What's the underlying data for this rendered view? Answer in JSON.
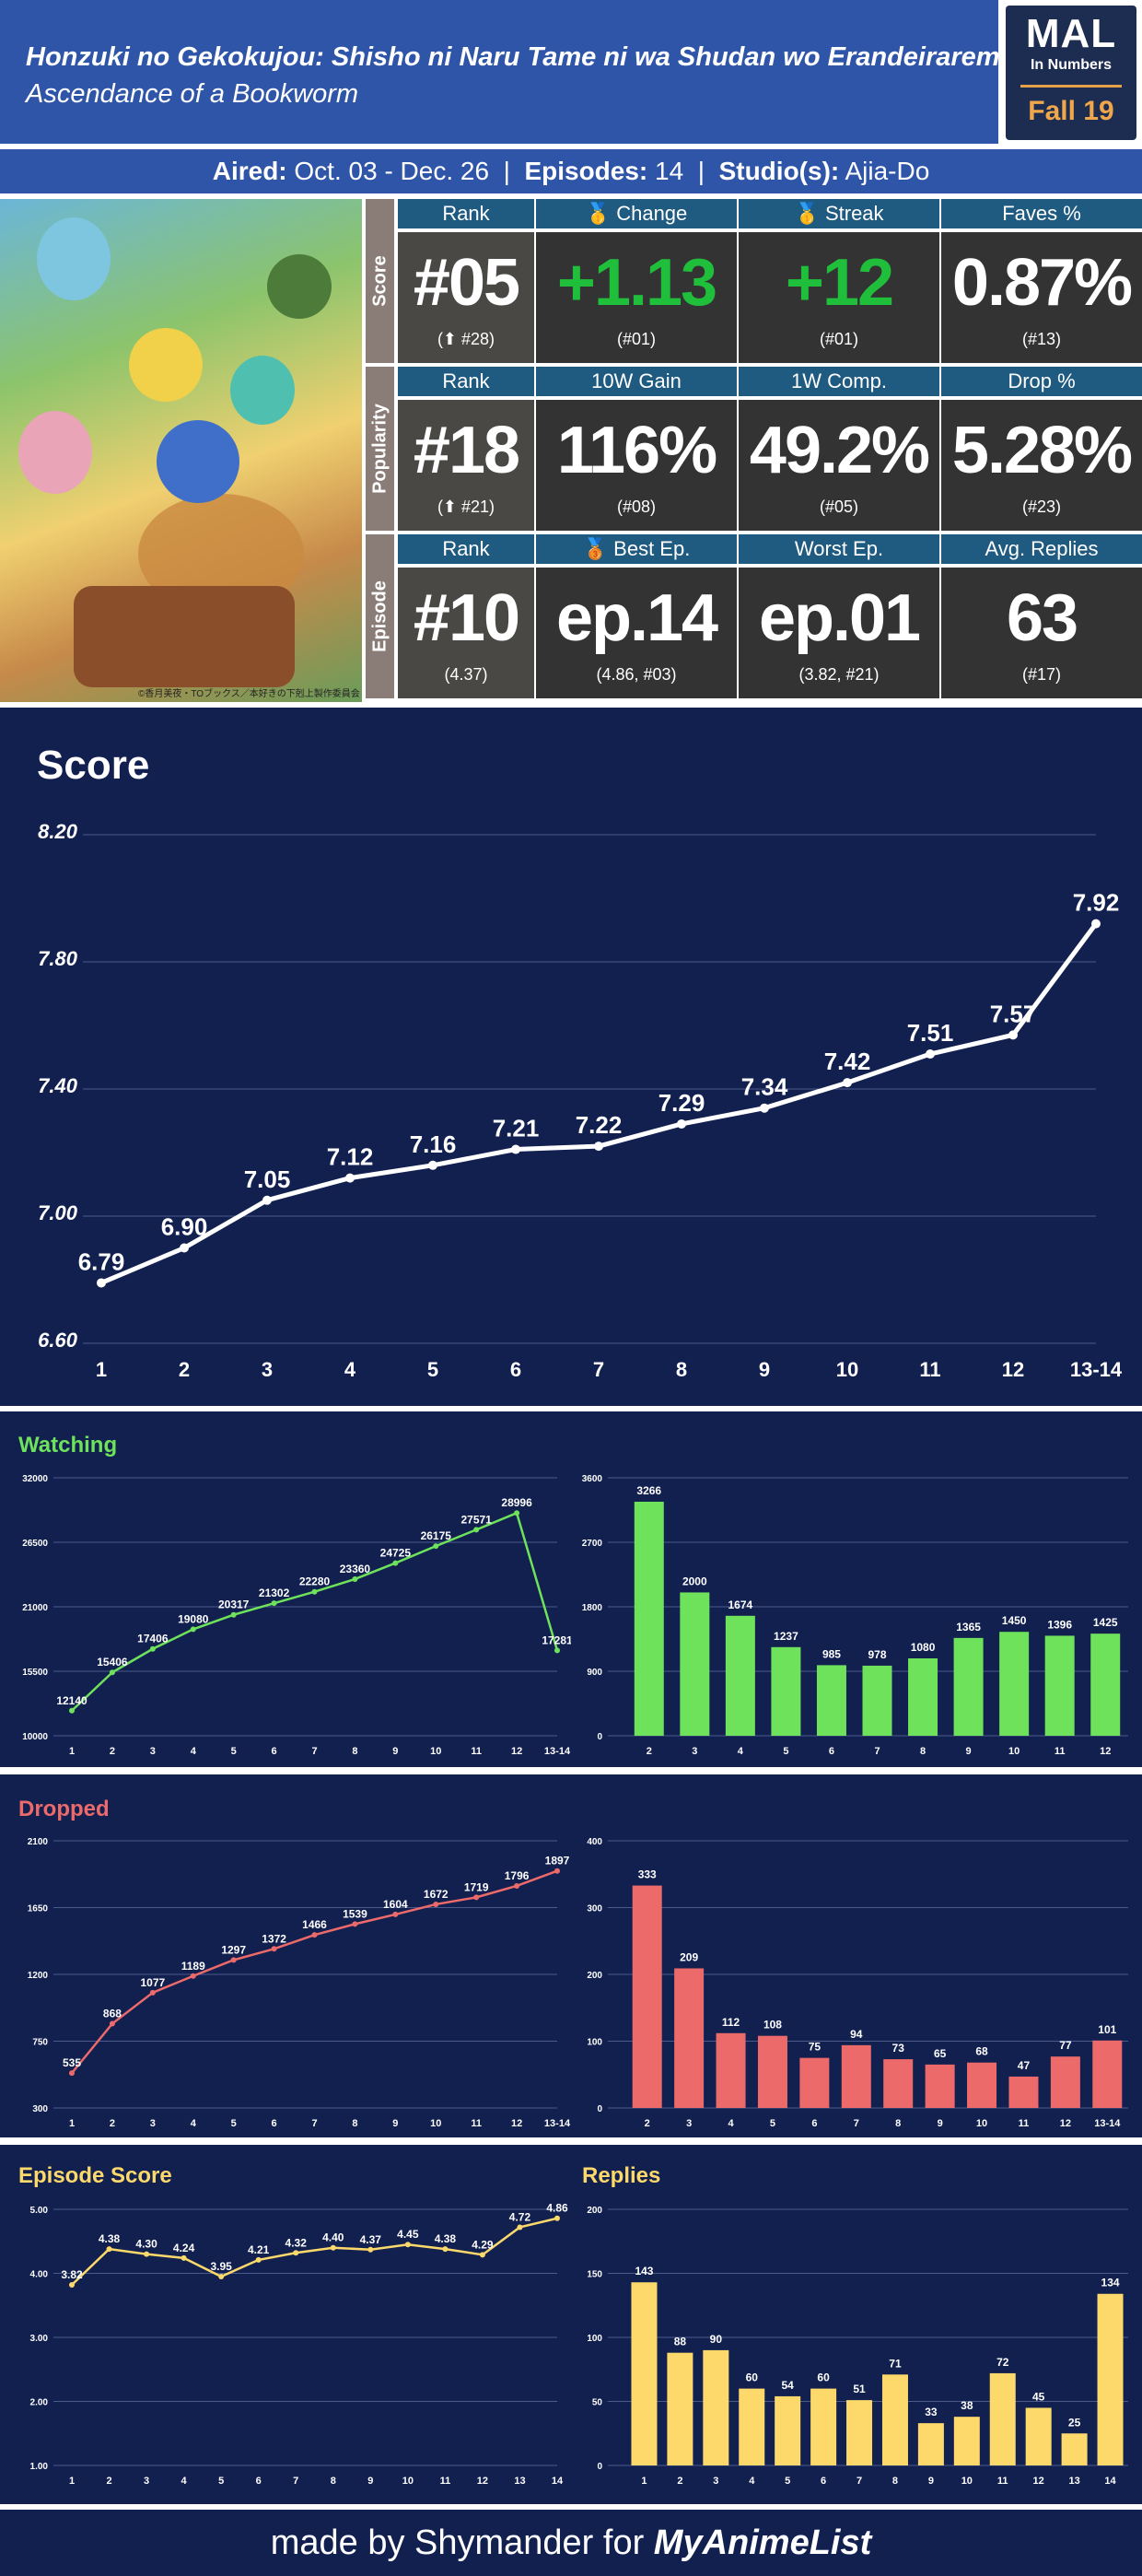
{
  "header": {
    "title_jp": "Honzuki no Gekokujou: Shisho ni Naru Tame ni wa Shudan wo Erandeiraremasen",
    "title_en": "Ascendance of a Bookworm"
  },
  "logo": {
    "mal": "MAL",
    "sub": "In Numbers",
    "season": "Fall 19"
  },
  "info": {
    "aired_label": "Aired:",
    "aired": "Oct. 03 - Dec. 26",
    "episodes_label": "Episodes:",
    "episodes": "14",
    "studio_label": "Studio(s):",
    "studio": "Ajia-Do"
  },
  "poster_credit": "©香月美夜・TOブックス／本好きの下剋上製作委員会",
  "stats": {
    "score": {
      "label": "Score",
      "cells": [
        {
          "h": "Rank",
          "v": "#05",
          "s": "(⬆ #28)"
        },
        {
          "h": "🥇 Change",
          "v": "+1.13",
          "s": "(#01)",
          "green": true
        },
        {
          "h": "🥇 Streak",
          "v": "+12",
          "s": "(#01)",
          "green": true
        },
        {
          "h": "Faves %",
          "v": "0.87%",
          "s": "(#13)"
        }
      ]
    },
    "popularity": {
      "label": "Popularity",
      "cells": [
        {
          "h": "Rank",
          "v": "#18",
          "s": "(⬆ #21)"
        },
        {
          "h": "10W Gain",
          "v": "116%",
          "s": "(#08)"
        },
        {
          "h": "1W Comp.",
          "v": "49.2%",
          "s": "(#05)"
        },
        {
          "h": "Drop %",
          "v": "5.28%",
          "s": "(#23)"
        }
      ]
    },
    "episode": {
      "label": "Episode",
      "cells": [
        {
          "h": "Rank",
          "v": "#10",
          "s": "(4.37)"
        },
        {
          "h": "🥉 Best Ep.",
          "v": "ep.14",
          "s": "(4.86, #03)"
        },
        {
          "h": "Worst Ep.",
          "v": "ep.01",
          "s": "(3.82, #21)"
        },
        {
          "h": "Avg. Replies",
          "v": "63",
          "s": "(#17)"
        }
      ]
    }
  },
  "colors": {
    "header": "#2f55a8",
    "panel": "#122050",
    "green": "#6ee25a",
    "red": "#ec6a6a",
    "yellow": "#fcd96a"
  },
  "chart_data": [
    {
      "id": "score",
      "type": "line",
      "title": "Score",
      "x": [
        "1",
        "2",
        "3",
        "4",
        "5",
        "6",
        "7",
        "8",
        "9",
        "10",
        "11",
        "12",
        "13-14"
      ],
      "values": [
        6.79,
        6.9,
        7.05,
        7.12,
        7.16,
        7.21,
        7.22,
        7.29,
        7.34,
        7.42,
        7.51,
        7.57,
        7.92
      ],
      "labels": [
        "6.79",
        "6.90",
        "7.05",
        "7.12",
        "7.16",
        "7.21",
        "7.22",
        "7.29",
        "7.34",
        "7.42",
        "7.51",
        "7.57",
        "7.92"
      ],
      "yticks": [
        "8.20",
        "7.80",
        "7.40",
        "7.00",
        "6.60"
      ],
      "ylim": [
        6.6,
        8.2
      ],
      "grid": true,
      "color": "#ffffff"
    },
    {
      "id": "watching_line",
      "type": "line",
      "title": "Watching",
      "x": [
        "1",
        "2",
        "3",
        "4",
        "5",
        "6",
        "7",
        "8",
        "9",
        "10",
        "11",
        "12",
        "13-14"
      ],
      "values": [
        12140,
        15406,
        17406,
        19080,
        20317,
        21302,
        22280,
        23360,
        24725,
        26175,
        27571,
        28996,
        17281
      ],
      "labels": [
        "12140",
        "15406",
        "17406",
        "19080",
        "20317",
        "21302",
        "22280",
        "23360",
        "24725",
        "26175",
        "27571",
        "28996",
        "17281"
      ],
      "yticks": [
        "32000",
        "26500",
        "21000",
        "15500",
        "10000"
      ],
      "ylim": [
        10000,
        32000
      ],
      "grid": true,
      "color": "#6ee25a"
    },
    {
      "id": "watching_bar",
      "type": "bar",
      "title": "",
      "x": [
        "2",
        "3",
        "4",
        "5",
        "6",
        "7",
        "8",
        "9",
        "10",
        "11",
        "12"
      ],
      "values": [
        3266,
        2000,
        1674,
        1237,
        985,
        978,
        1080,
        1365,
        1450,
        1396,
        1425
      ],
      "labels": [
        "3266",
        "2000",
        "1674",
        "1237",
        "985",
        "978",
        "1080",
        "1365",
        "1450",
        "1396",
        "1425"
      ],
      "yticks": [
        "3600",
        "2700",
        "1800",
        "900",
        "0"
      ],
      "ylim": [
        0,
        3600
      ],
      "grid": true,
      "color": "#6ee25a"
    },
    {
      "id": "dropped_line",
      "type": "line",
      "title": "Dropped",
      "x": [
        "1",
        "2",
        "3",
        "4",
        "5",
        "6",
        "7",
        "8",
        "9",
        "10",
        "11",
        "12",
        "13-14"
      ],
      "values": [
        535,
        868,
        1077,
        1189,
        1297,
        1372,
        1466,
        1539,
        1604,
        1672,
        1719,
        1796,
        1897
      ],
      "labels": [
        "535",
        "868",
        "1077",
        "1189",
        "1297",
        "1372",
        "1466",
        "1539",
        "1604",
        "1672",
        "1719",
        "1796",
        "1897"
      ],
      "yticks": [
        "2100",
        "1650",
        "1200",
        "750",
        "300"
      ],
      "ylim": [
        300,
        2100
      ],
      "grid": true,
      "color": "#ec6a6a"
    },
    {
      "id": "dropped_bar",
      "type": "bar",
      "title": "",
      "x": [
        "2",
        "3",
        "4",
        "5",
        "6",
        "7",
        "8",
        "9",
        "10",
        "11",
        "12",
        "13-14"
      ],
      "values": [
        333,
        209,
        112,
        108,
        75,
        94,
        73,
        65,
        68,
        47,
        77,
        101
      ],
      "labels": [
        "333",
        "209",
        "112",
        "108",
        "75",
        "94",
        "73",
        "65",
        "68",
        "47",
        "77",
        "101"
      ],
      "yticks": [
        "400",
        "300",
        "200",
        "100",
        "0"
      ],
      "ylim": [
        0,
        400
      ],
      "grid": true,
      "color": "#ec6a6a"
    },
    {
      "id": "episode_score",
      "type": "line",
      "title": "Episode Score",
      "x": [
        "1",
        "2",
        "3",
        "4",
        "5",
        "6",
        "7",
        "8",
        "9",
        "10",
        "11",
        "12",
        "13",
        "14"
      ],
      "values": [
        3.82,
        4.38,
        4.3,
        4.24,
        3.95,
        4.21,
        4.32,
        4.4,
        4.37,
        4.45,
        4.38,
        4.29,
        4.72,
        4.86
      ],
      "labels": [
        "3.82",
        "4.38",
        "4.30",
        "4.24",
        "3.95",
        "4.21",
        "4.32",
        "4.40",
        "4.37",
        "4.45",
        "4.38",
        "4.29",
        "4.72",
        "4.86"
      ],
      "yticks": [
        "5.00",
        "4.00",
        "3.00",
        "2.00",
        "1.00"
      ],
      "ylim": [
        1,
        5
      ],
      "grid": true,
      "color": "#fcd96a"
    },
    {
      "id": "replies",
      "type": "bar",
      "title": "Replies",
      "x": [
        "1",
        "2",
        "3",
        "4",
        "5",
        "6",
        "7",
        "8",
        "9",
        "10",
        "11",
        "12",
        "13",
        "14"
      ],
      "values": [
        143,
        88,
        90,
        60,
        54,
        60,
        51,
        71,
        33,
        38,
        72,
        45,
        25,
        134
      ],
      "labels": [
        "143",
        "88",
        "90",
        "60",
        "54",
        "60",
        "51",
        "71",
        "33",
        "38",
        "72",
        "45",
        "25",
        "134"
      ],
      "yticks": [
        "200",
        "150",
        "100",
        "50",
        "0"
      ],
      "ylim": [
        0,
        200
      ],
      "grid": true,
      "color": "#fcd96a"
    }
  ],
  "footer": {
    "prefix": "made by Shymander for",
    "brand": "MyAnimeList"
  }
}
